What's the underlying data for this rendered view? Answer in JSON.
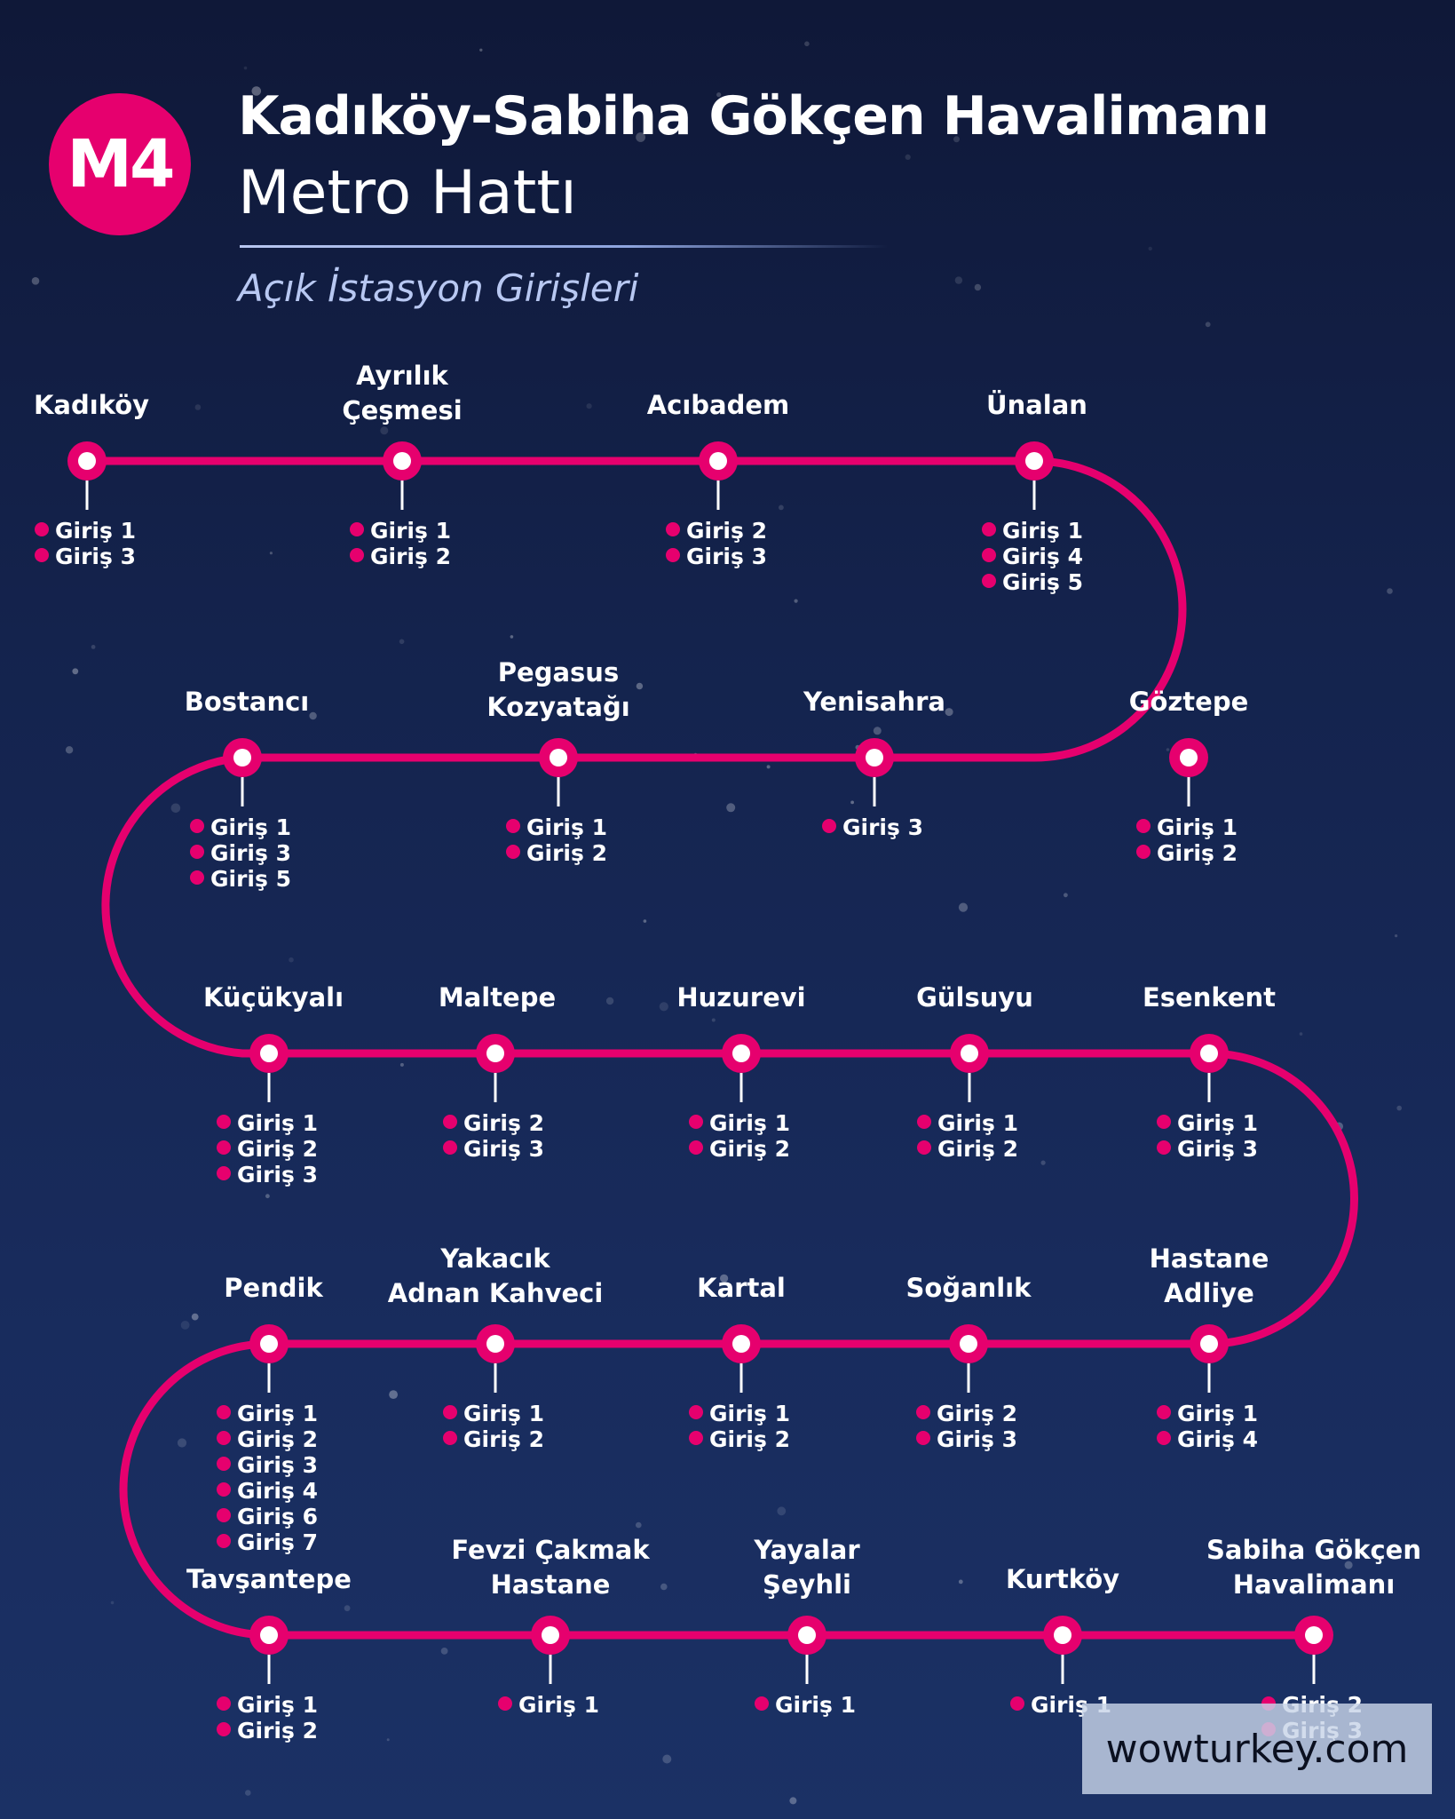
{
  "line": {
    "code": "M4",
    "title": "Kadıköy-Sabiha Gökçen Havalimanı",
    "subtitle": "Metro Hattı",
    "section_label": "Açık İstasyon Girişleri",
    "colors": {
      "line": "#e6006e",
      "entrance_dot": "#e6006e",
      "station_fill": "#ffffff",
      "text": "#ffffff"
    }
  },
  "stations": [
    {
      "name": [
        "Kadıköy"
      ],
      "entrances": [
        "Giriş 1",
        "Giriş 3"
      ]
    },
    {
      "name": [
        "Ayrılık",
        "Çeşmesi"
      ],
      "entrances": [
        "Giriş 1",
        "Giriş 2"
      ]
    },
    {
      "name": [
        "Acıbadem"
      ],
      "entrances": [
        "Giriş 2",
        "Giriş 3"
      ]
    },
    {
      "name": [
        "Ünalan"
      ],
      "entrances": [
        "Giriş 1",
        "Giriş 4",
        "Giriş 5"
      ]
    },
    {
      "name": [
        "Göztepe"
      ],
      "entrances": [
        "Giriş 1",
        "Giriş 2"
      ]
    },
    {
      "name": [
        "Yenisahra"
      ],
      "entrances": [
        "Giriş 3"
      ]
    },
    {
      "name": [
        "Pegasus",
        "Kozyatağı"
      ],
      "entrances": [
        "Giriş 1",
        "Giriş 2"
      ]
    },
    {
      "name": [
        "Bostancı"
      ],
      "entrances": [
        "Giriş 1",
        "Giriş 3",
        "Giriş 5"
      ]
    },
    {
      "name": [
        "Küçükyalı"
      ],
      "entrances": [
        "Giriş 1",
        "Giriş 2",
        "Giriş 3"
      ]
    },
    {
      "name": [
        "Maltepe"
      ],
      "entrances": [
        "Giriş 2",
        "Giriş 3"
      ]
    },
    {
      "name": [
        "Huzurevi"
      ],
      "entrances": [
        "Giriş 1",
        "Giriş 2"
      ]
    },
    {
      "name": [
        "Gülsuyu"
      ],
      "entrances": [
        "Giriş 1",
        "Giriş 2"
      ]
    },
    {
      "name": [
        "Esenkent"
      ],
      "entrances": [
        "Giriş 1",
        "Giriş 3"
      ]
    },
    {
      "name": [
        "Hastane",
        "Adliye"
      ],
      "entrances": [
        "Giriş 1",
        "Giriş 4"
      ]
    },
    {
      "name": [
        "Soğanlık"
      ],
      "entrances": [
        "Giriş 2",
        "Giriş 3"
      ]
    },
    {
      "name": [
        "Kartal"
      ],
      "entrances": [
        "Giriş 1",
        "Giriş 2"
      ]
    },
    {
      "name": [
        "Yakacık",
        "Adnan Kahveci"
      ],
      "entrances": [
        "Giriş 1",
        "Giriş 2"
      ]
    },
    {
      "name": [
        "Pendik"
      ],
      "entrances": [
        "Giriş 1",
        "Giriş 2",
        "Giriş 3",
        "Giriş 4",
        "Giriş 6",
        "Giriş 7"
      ]
    },
    {
      "name": [
        "Tavşantepe"
      ],
      "entrances": [
        "Giriş 1",
        "Giriş 2"
      ]
    },
    {
      "name": [
        "Fevzi Çakmak",
        "Hastane"
      ],
      "entrances": [
        "Giriş 1"
      ]
    },
    {
      "name": [
        "Yayalar",
        "Şeyhli"
      ],
      "entrances": [
        "Giriş 1"
      ]
    },
    {
      "name": [
        "Kurtköy"
      ],
      "entrances": [
        "Giriş 1"
      ]
    },
    {
      "name": [
        "Sabiha Gökçen",
        "Havalimanı"
      ],
      "entrances": [
        "Giriş 2",
        "Giriş 3"
      ]
    }
  ],
  "watermark": "wowturkey.com"
}
